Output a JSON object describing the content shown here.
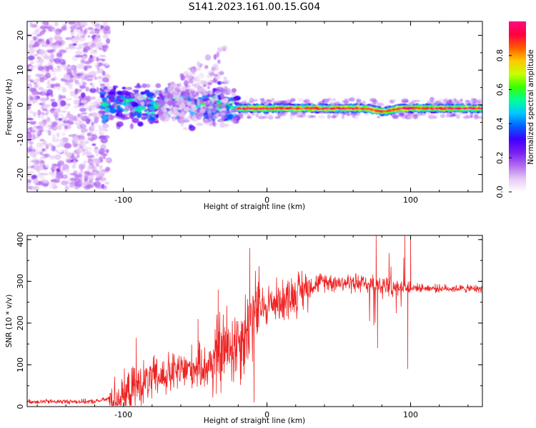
{
  "title": "S141.2023.161.00.15.G04",
  "colors": {
    "snr_line": "#ee2222",
    "spectrum_scale": [
      "#ffffff",
      "#e6c8f5",
      "#b36bf0",
      "#7a1ef2",
      "#3f00ff",
      "#0060ff",
      "#00c8ff",
      "#00ff9a",
      "#39ff00",
      "#c8ff00",
      "#ffc800",
      "#ff5a00",
      "#ff0040",
      "#ff0a80"
    ]
  },
  "chart_data": [
    {
      "id": "spectrogram",
      "type": "heatmap",
      "xlabel": "Height of straight line (km)",
      "ylabel": "Frequency (Hz)",
      "xlim": [
        -167,
        150
      ],
      "ylim": [
        -25,
        24
      ],
      "xticks": [
        "-100",
        "0",
        "100"
      ],
      "xtick_values": [
        -100,
        0,
        100
      ],
      "yticks": [
        "-20",
        "-10",
        "0",
        "10",
        "20"
      ],
      "ytick_values": [
        -20,
        -10,
        0,
        10,
        20
      ],
      "colorbar": {
        "label": "Normalized spectral amplitude",
        "range": [
          0.0,
          1.0
        ],
        "ticks": [
          "0.0",
          "0.2",
          "0.4",
          "0.6",
          "0.8"
        ],
        "tick_values": [
          0.0,
          0.2,
          0.4,
          0.6,
          0.8
        ]
      },
      "regions": [
        {
          "x_range": [
            -167,
            -110
          ],
          "freq_spread": 24,
          "amplitude": 0.08,
          "description_level": "noise"
        },
        {
          "x_range": [
            -115,
            -20
          ],
          "freq_center": 0,
          "freq_spread": 4,
          "amplitude": 0.35
        },
        {
          "x_range": [
            -75,
            -28
          ],
          "freq_center": 6,
          "freq_spread": 8,
          "amplitude": 0.1
        },
        {
          "x_range": [
            -20,
            150
          ],
          "freq_center": -1,
          "freq_spread": 1.2,
          "amplitude": 0.85
        }
      ]
    },
    {
      "id": "snr",
      "type": "line",
      "xlabel": "Height of straight line (km)",
      "ylabel": "SNR (10 * v/v)",
      "xlim": [
        -167,
        150
      ],
      "ylim": [
        0,
        410
      ],
      "xticks": [
        "-100",
        "0",
        "100"
      ],
      "xtick_values": [
        -100,
        0,
        100
      ],
      "yticks": [
        "0",
        "100",
        "200",
        "300",
        "400"
      ],
      "ytick_values": [
        0,
        100,
        200,
        300,
        400
      ],
      "trend": [
        {
          "x": -167,
          "y": 12
        },
        {
          "x": -120,
          "y": 12
        },
        {
          "x": -100,
          "y": 25
        },
        {
          "x": -90,
          "y": 50
        },
        {
          "x": -80,
          "y": 65
        },
        {
          "x": -65,
          "y": 80
        },
        {
          "x": -50,
          "y": 95
        },
        {
          "x": -42,
          "y": 95
        },
        {
          "x": -35,
          "y": 120
        },
        {
          "x": -28,
          "y": 140
        },
        {
          "x": -22,
          "y": 155
        },
        {
          "x": -16,
          "y": 170
        },
        {
          "x": -11,
          "y": 210
        },
        {
          "x": -7,
          "y": 230
        },
        {
          "x": 0,
          "y": 245
        },
        {
          "x": 10,
          "y": 255
        },
        {
          "x": 20,
          "y": 270
        },
        {
          "x": 30,
          "y": 290
        },
        {
          "x": 40,
          "y": 300
        },
        {
          "x": 60,
          "y": 296
        },
        {
          "x": 80,
          "y": 290
        },
        {
          "x": 100,
          "y": 285
        },
        {
          "x": 120,
          "y": 283
        },
        {
          "x": 150,
          "y": 282
        }
      ],
      "notable_points": [
        {
          "x": -91,
          "y": 165
        },
        {
          "x": -48,
          "y": 210
        },
        {
          "x": -34,
          "y": 280
        },
        {
          "x": -12,
          "y": 380
        },
        {
          "x": -9,
          "y": 10
        },
        {
          "x": 76,
          "y": 410
        },
        {
          "x": 77,
          "y": 140
        },
        {
          "x": 96,
          "y": 410
        },
        {
          "x": 98,
          "y": 90
        },
        {
          "x": 100,
          "y": 410
        }
      ]
    }
  ]
}
